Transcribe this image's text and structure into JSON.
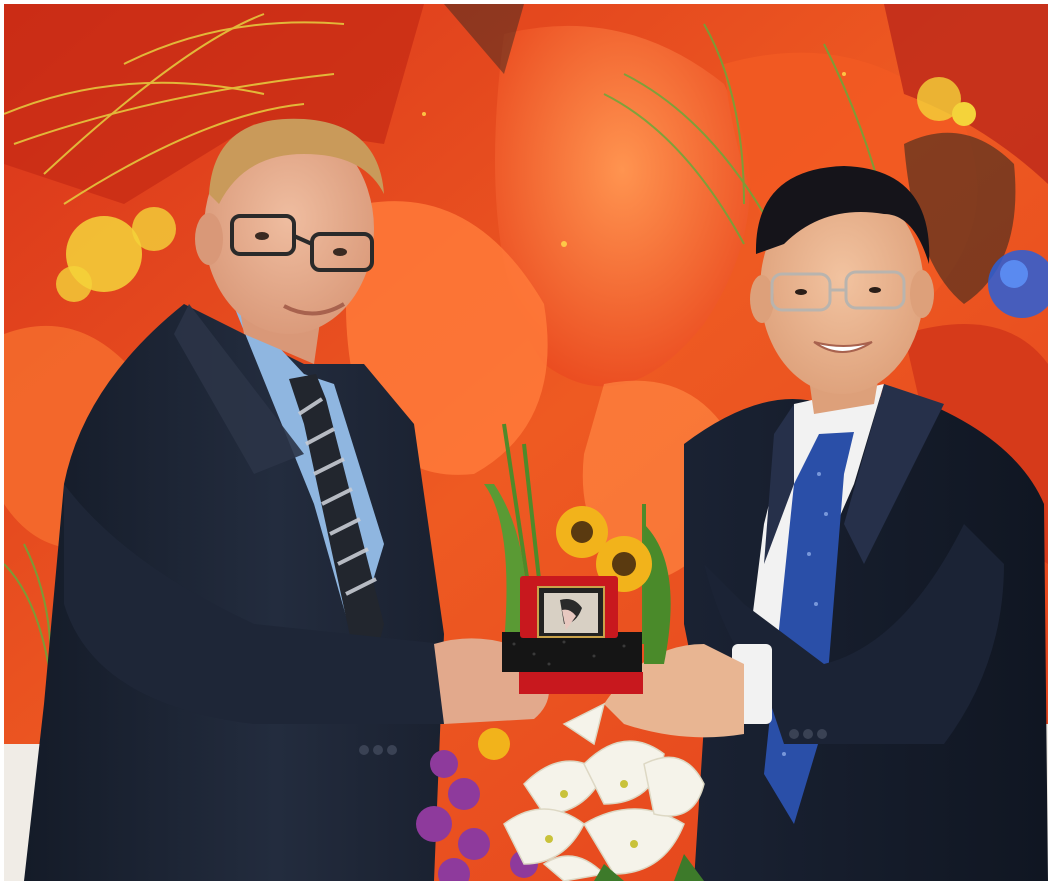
{
  "photo": {
    "subject": "",
    "palette": {
      "background_red": "#e8431a",
      "background_orange": "#f26a2a",
      "petal_light": "#ff8a4a",
      "pollen_yellow": "#f4d33a",
      "grass_green": "#6aa83a",
      "suit_dark": "#1c2434",
      "suit_navy": "#1a2233",
      "shirt_blue": "#8fb6e0",
      "shirt_white": "#f2f2f2",
      "tie_blue": "#2a4fa8",
      "skin_left": "#e2a98c",
      "skin_right": "#e8b592",
      "hair_left": "#c99a5a",
      "hair_right": "#15141a",
      "gift_box_red": "#c8181e",
      "gift_base_black": "#151515",
      "lily_white": "#f5f3ea",
      "orchid_purple": "#8e3a9c",
      "sunflower": "#f2b31b"
    },
    "icons": [
      "person-left",
      "person-right",
      "gift-box",
      "flower-arrangement",
      "mural-background"
    ]
  }
}
